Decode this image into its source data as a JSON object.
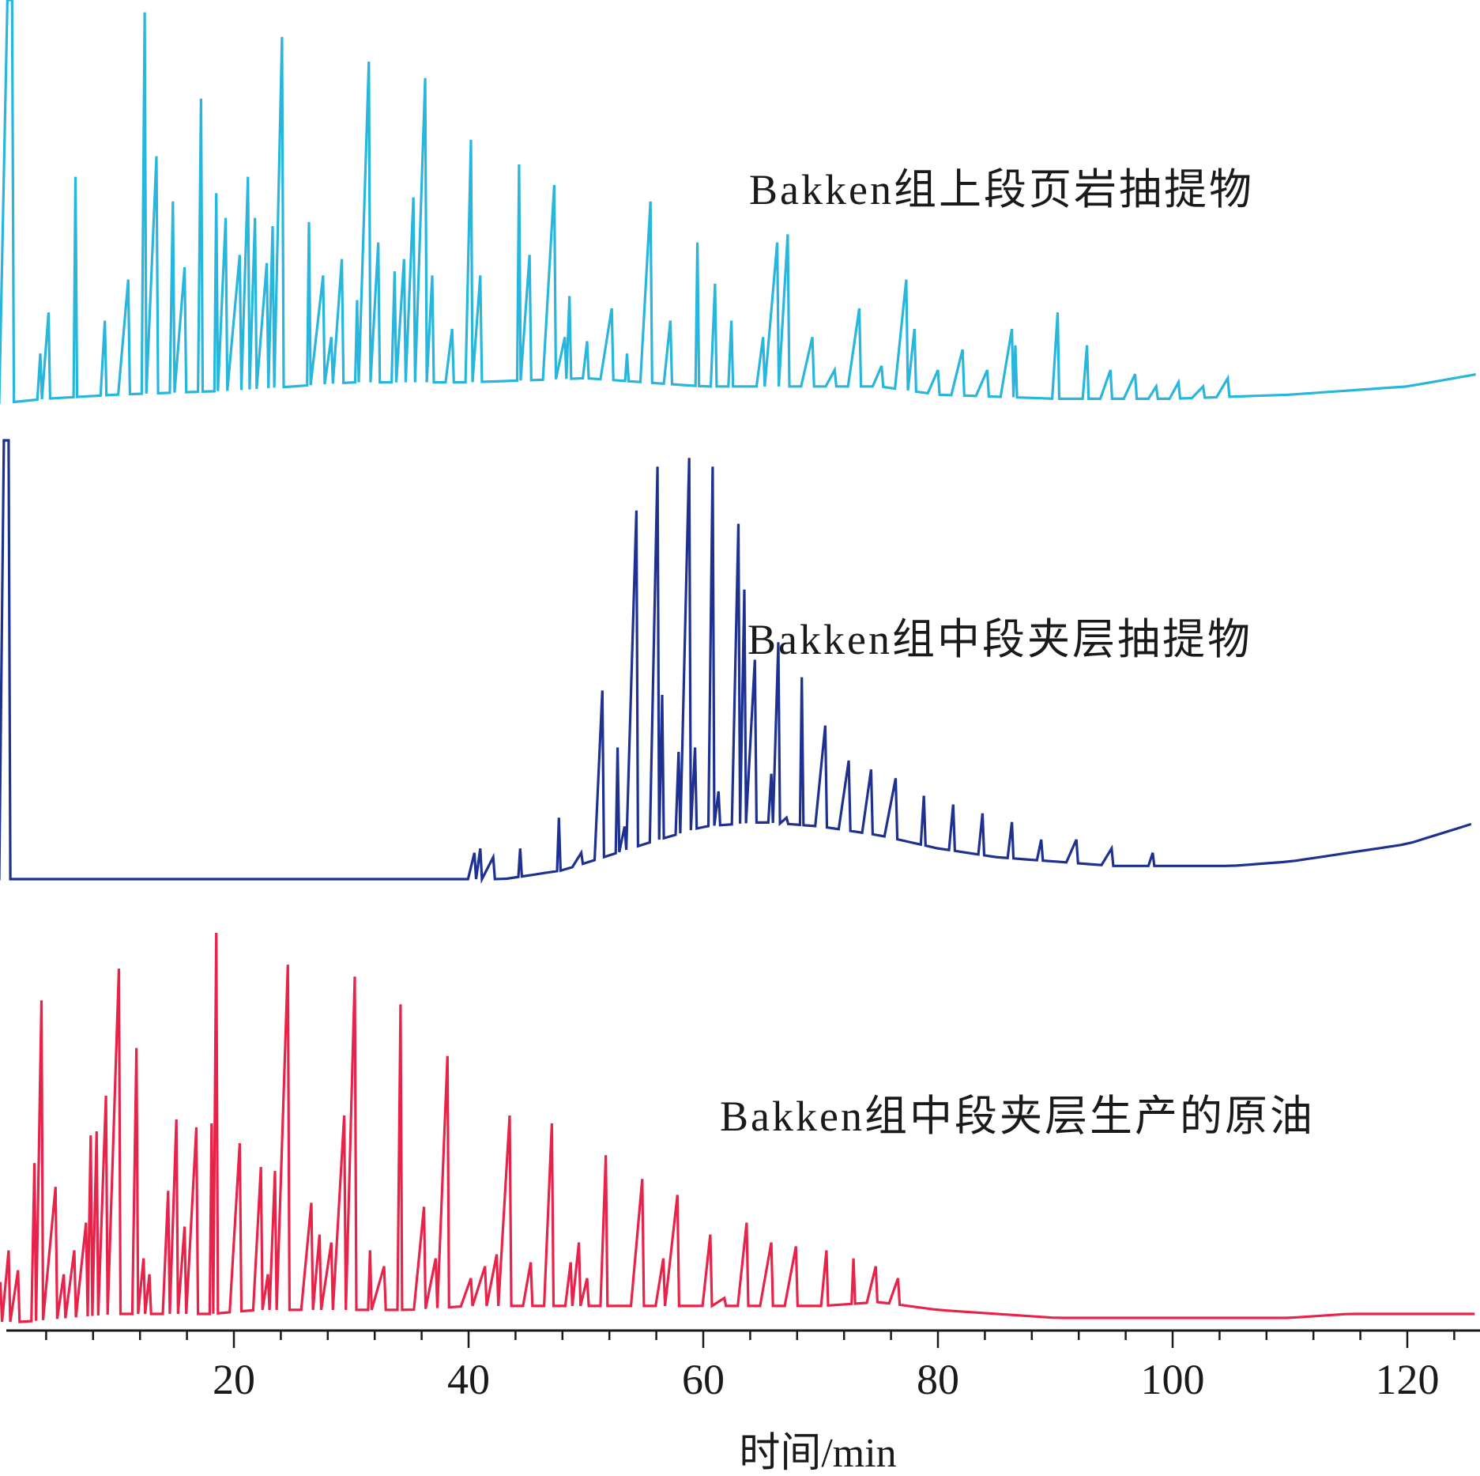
{
  "chart_data": {
    "type": "line",
    "title": "",
    "xlabel": "时间/min",
    "ylabel": "",
    "xlim": [
      -4,
      126
    ],
    "x_ticks": [
      20,
      40,
      60,
      80,
      100,
      120
    ],
    "x_tick_labels": [
      "20",
      "40",
      "60",
      "80",
      "100",
      "120"
    ],
    "minor_ticks": [
      4,
      8,
      12,
      16,
      24,
      28,
      32,
      36,
      44,
      48,
      52,
      56,
      64,
      68,
      72,
      76,
      84,
      88,
      92,
      96,
      104,
      108,
      112,
      116,
      124
    ],
    "series": [
      {
        "name": "Bakken组上段页岩抽提物",
        "color": "#29b6dc",
        "baseline": [
          [
            -4,
            2
          ],
          [
            0.5,
            2
          ],
          [
            4,
            3
          ],
          [
            10,
            4
          ],
          [
            20,
            5
          ],
          [
            30,
            7
          ],
          [
            40,
            7
          ],
          [
            50,
            8
          ],
          [
            55,
            7
          ],
          [
            60,
            6
          ],
          [
            70,
            6
          ],
          [
            75,
            6
          ],
          [
            80,
            4
          ],
          [
            90,
            3
          ],
          [
            100,
            3
          ],
          [
            110,
            4
          ],
          [
            120,
            6
          ],
          [
            126,
            9
          ]
        ],
        "peaks": [
          [
            0.9,
            100
          ],
          [
            3.5,
            14
          ],
          [
            4.2,
            24
          ],
          [
            6.5,
            57
          ],
          [
            9,
            22
          ],
          [
            11,
            32
          ],
          [
            12.4,
            97
          ],
          [
            13.4,
            62
          ],
          [
            14.8,
            51
          ],
          [
            15.8,
            35
          ],
          [
            17.2,
            76
          ],
          [
            18.5,
            53
          ],
          [
            19.3,
            47
          ],
          [
            20.5,
            38
          ],
          [
            21.2,
            57
          ],
          [
            21.8,
            47
          ],
          [
            22.8,
            36
          ],
          [
            23.3,
            45
          ],
          [
            24.1,
            91
          ],
          [
            26.4,
            46
          ],
          [
            27.6,
            33
          ],
          [
            28.3,
            18
          ],
          [
            29.2,
            37
          ],
          [
            30.5,
            27
          ],
          [
            31.5,
            85
          ],
          [
            32.3,
            41
          ],
          [
            33.7,
            34
          ],
          [
            34.5,
            37
          ],
          [
            35.3,
            52
          ],
          [
            36.3,
            81
          ],
          [
            36.9,
            33
          ],
          [
            38.6,
            20
          ],
          [
            40.2,
            66
          ],
          [
            41,
            33
          ],
          [
            44.3,
            60
          ],
          [
            45.2,
            38
          ],
          [
            47.3,
            55
          ],
          [
            48.2,
            18
          ],
          [
            48.6,
            28
          ],
          [
            50.1,
            17
          ],
          [
            52.2,
            25
          ],
          [
            53.5,
            14
          ],
          [
            55.5,
            51
          ],
          [
            57.2,
            22
          ],
          [
            59.5,
            41
          ],
          [
            61,
            31
          ],
          [
            62.4,
            22
          ],
          [
            65.1,
            18
          ],
          [
            66.3,
            41
          ],
          [
            67.2,
            43
          ],
          [
            69.3,
            18
          ],
          [
            71.2,
            10
          ],
          [
            73.3,
            25
          ],
          [
            75.2,
            11
          ],
          [
            77.3,
            32
          ],
          [
            78,
            20
          ],
          [
            80,
            10
          ],
          [
            82.1,
            15
          ],
          [
            84.2,
            10
          ],
          [
            86.3,
            20
          ],
          [
            86.6,
            16
          ],
          [
            90.2,
            24
          ],
          [
            92.7,
            16
          ],
          [
            94.7,
            10
          ],
          [
            96.8,
            9
          ],
          [
            98.6,
            6
          ],
          [
            100.5,
            7
          ],
          [
            102.6,
            6
          ],
          [
            104.7,
            8
          ]
        ]
      },
      {
        "name": "Bakken组中段夹层抽提物",
        "color": "#1e3190",
        "baseline": [
          [
            -4,
            0
          ],
          [
            0.5,
            0
          ],
          [
            40,
            0
          ],
          [
            43,
            0
          ],
          [
            48,
            2
          ],
          [
            55,
            8
          ],
          [
            60,
            12
          ],
          [
            65,
            13
          ],
          [
            70,
            12
          ],
          [
            75,
            10
          ],
          [
            80,
            7
          ],
          [
            85,
            5
          ],
          [
            90,
            4
          ],
          [
            95,
            3
          ],
          [
            100,
            3
          ],
          [
            105,
            3
          ],
          [
            110,
            4
          ],
          [
            120,
            8
          ],
          [
            126,
            13
          ]
        ],
        "peaks": [
          [
            0.6,
            100
          ],
          [
            40.5,
            6
          ],
          [
            41,
            7
          ],
          [
            42.1,
            5
          ],
          [
            44.4,
            7
          ],
          [
            47.7,
            14
          ],
          [
            49.6,
            6
          ],
          [
            51.4,
            43
          ],
          [
            52.7,
            30
          ],
          [
            53.3,
            12
          ],
          [
            54.3,
            84
          ],
          [
            56.1,
            94
          ],
          [
            56.5,
            42
          ],
          [
            57.9,
            29
          ],
          [
            58.8,
            96
          ],
          [
            59.3,
            30
          ],
          [
            60.8,
            94
          ],
          [
            61.3,
            20
          ],
          [
            63,
            81
          ],
          [
            63.5,
            66
          ],
          [
            64.4,
            50
          ],
          [
            65.8,
            24
          ],
          [
            66.4,
            54
          ],
          [
            67.1,
            14
          ],
          [
            68.4,
            46
          ],
          [
            70.4,
            35
          ],
          [
            72.4,
            27
          ],
          [
            74.3,
            25
          ],
          [
            76.4,
            23
          ],
          [
            78.8,
            19
          ],
          [
            81.3,
            17
          ],
          [
            83.8,
            15
          ],
          [
            86.3,
            13
          ],
          [
            88.8,
            9
          ],
          [
            91.8,
            9
          ],
          [
            94.8,
            7
          ],
          [
            98.3,
            6
          ]
        ]
      },
      {
        "name": "Bakken组中段夹层生产的原油",
        "color": "#e8234a",
        "baseline": [
          [
            -4,
            0
          ],
          [
            0,
            0
          ],
          [
            2,
            0
          ],
          [
            6,
            1
          ],
          [
            10,
            2
          ],
          [
            14,
            2
          ],
          [
            18,
            2
          ],
          [
            22,
            3
          ],
          [
            26,
            3
          ],
          [
            30,
            3
          ],
          [
            35,
            3
          ],
          [
            40,
            4
          ],
          [
            45,
            4
          ],
          [
            50,
            4
          ],
          [
            55,
            4
          ],
          [
            60,
            4
          ],
          [
            65,
            4
          ],
          [
            70,
            4
          ],
          [
            75,
            5
          ],
          [
            80,
            3
          ],
          [
            85,
            2
          ],
          [
            90,
            1
          ],
          [
            95,
            1
          ],
          [
            100,
            1
          ],
          [
            105,
            1
          ],
          [
            110,
            1
          ],
          [
            115,
            2
          ],
          [
            120,
            2
          ],
          [
            126,
            2
          ]
        ],
        "peaks": [
          [
            0.1,
            10
          ],
          [
            0.8,
            18
          ],
          [
            1.6,
            13
          ],
          [
            3,
            40
          ],
          [
            3.6,
            81
          ],
          [
            4.8,
            34
          ],
          [
            5.5,
            12
          ],
          [
            6.4,
            18
          ],
          [
            7.4,
            25
          ],
          [
            7.8,
            47
          ],
          [
            8.3,
            48
          ],
          [
            9.1,
            57
          ],
          [
            10.2,
            89
          ],
          [
            11.7,
            69
          ],
          [
            12.3,
            16
          ],
          [
            12.8,
            12
          ],
          [
            14.4,
            33
          ],
          [
            15.1,
            51
          ],
          [
            15.8,
            24
          ],
          [
            16.8,
            49
          ],
          [
            18.1,
            50
          ],
          [
            18.5,
            98
          ],
          [
            20.5,
            45
          ],
          [
            22.3,
            39
          ],
          [
            22.9,
            12
          ],
          [
            23.5,
            38
          ],
          [
            24.6,
            90
          ],
          [
            26.6,
            30
          ],
          [
            27.3,
            22
          ],
          [
            28.3,
            20
          ],
          [
            29.4,
            52
          ],
          [
            30.3,
            87
          ],
          [
            31.6,
            18
          ],
          [
            32.8,
            14
          ],
          [
            34.2,
            80
          ],
          [
            36.2,
            29
          ],
          [
            37.2,
            16
          ],
          [
            38.2,
            67
          ],
          [
            40.2,
            11
          ],
          [
            41.4,
            14
          ],
          [
            42.4,
            17
          ],
          [
            43.5,
            52
          ],
          [
            45.3,
            15
          ],
          [
            47.1,
            50
          ],
          [
            48.7,
            15
          ],
          [
            49.4,
            20
          ],
          [
            50.1,
            11
          ],
          [
            51.7,
            42
          ],
          [
            54.8,
            36
          ],
          [
            56.6,
            16
          ],
          [
            57.8,
            32
          ],
          [
            60.6,
            22
          ],
          [
            61.8,
            6
          ],
          [
            63.7,
            25
          ],
          [
            65.8,
            20
          ],
          [
            67.9,
            19
          ],
          [
            70.5,
            18
          ],
          [
            72.8,
            16
          ],
          [
            74.7,
            14
          ],
          [
            76.6,
            11
          ]
        ]
      }
    ]
  }
}
